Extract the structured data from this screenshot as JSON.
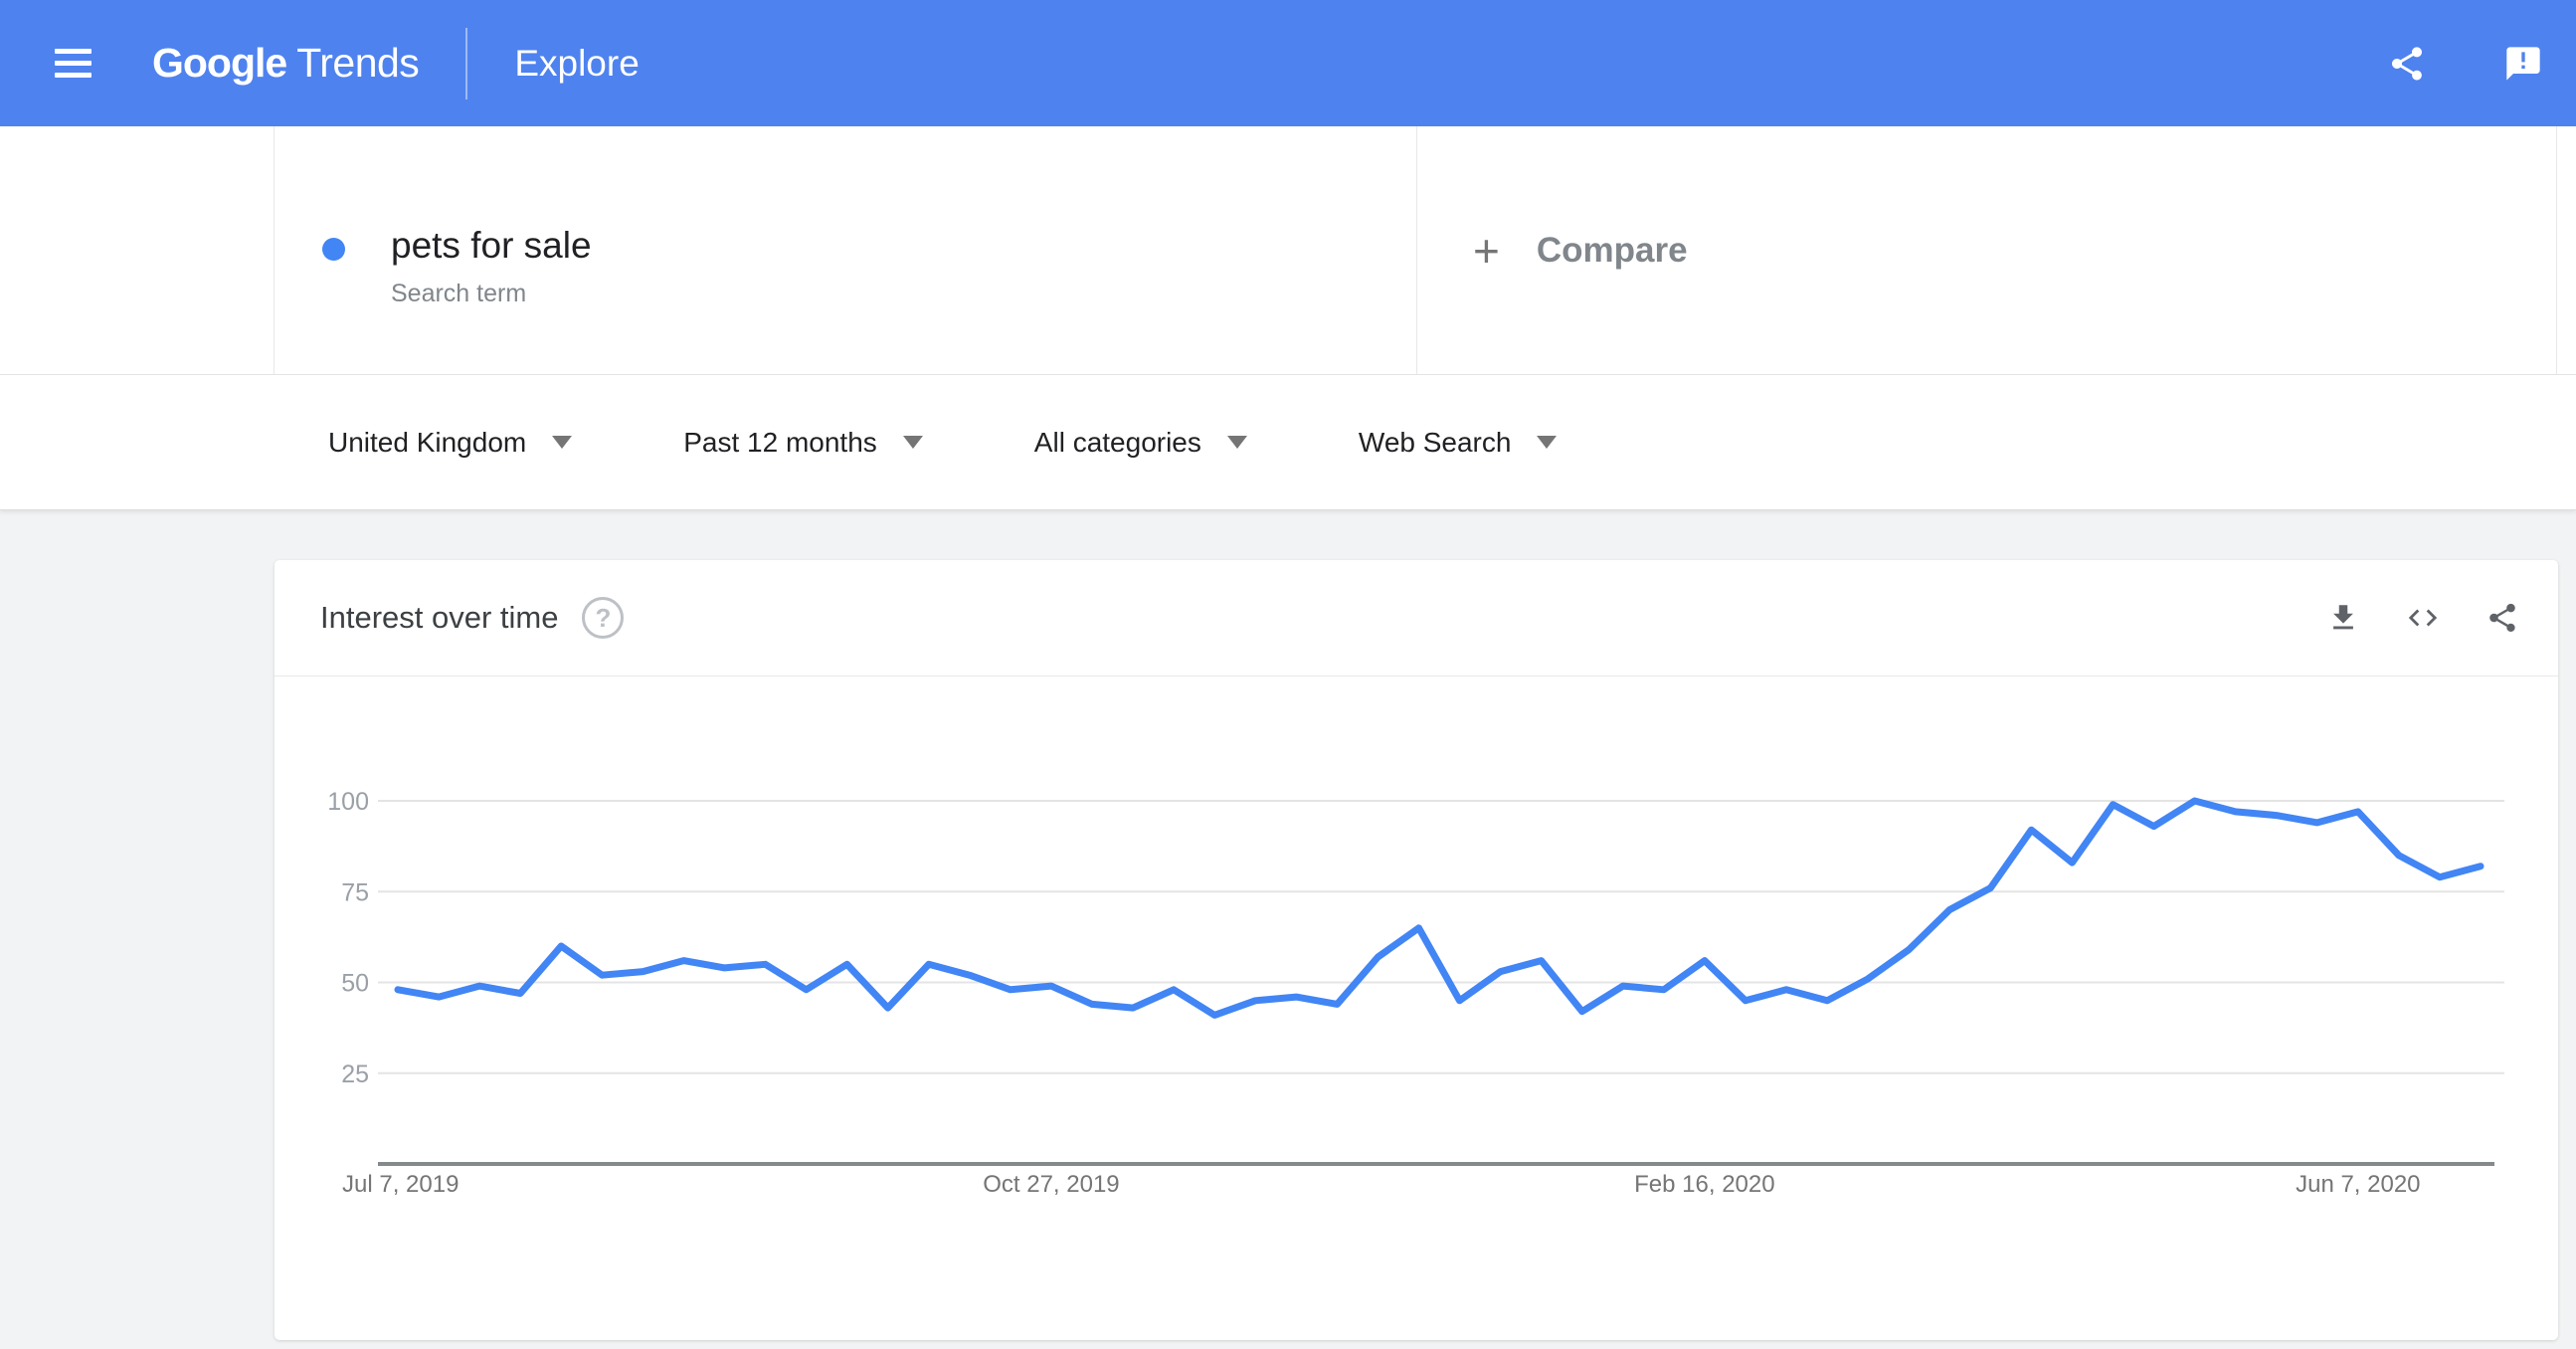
{
  "header": {
    "logo_google": "Google",
    "logo_trends": "Trends",
    "page_title": "Explore",
    "bg_color": "#4e82ef",
    "icons": [
      "menu-icon",
      "share-icon",
      "feedback-icon"
    ]
  },
  "term_section": {
    "term": "pets for sale",
    "type_label": "Search term",
    "dot_color": "#4285f4",
    "compare_plus": "+",
    "compare_label": "Compare"
  },
  "filters": {
    "geo": "United Kingdom",
    "time": "Past 12 months",
    "category": "All categories",
    "search_type": "Web Search"
  },
  "chart_card": {
    "title": "Interest over time",
    "help_glyph": "?",
    "icons": [
      "download-icon",
      "embed-code-icon",
      "share-icon"
    ]
  },
  "chart_data": {
    "type": "line",
    "title": "Interest over time",
    "legend": "none",
    "grid": "horizontal",
    "x_unit": "week",
    "num_points": 52,
    "x_range_start": "Jul 7, 2019",
    "x_range_end": "Jun 28, 2020",
    "series": [
      {
        "name": "pets for sale",
        "color": "#4285f4",
        "values": [
          48,
          46,
          49,
          47,
          60,
          52,
          53,
          56,
          54,
          55,
          48,
          55,
          43,
          55,
          52,
          48,
          49,
          44,
          43,
          48,
          41,
          45,
          46,
          44,
          57,
          65,
          45,
          53,
          56,
          42,
          49,
          48,
          56,
          45,
          48,
          45,
          51,
          59,
          70,
          76,
          92,
          83,
          99,
          93,
          100,
          97,
          96,
          94,
          97,
          85,
          79,
          82
        ]
      }
    ],
    "ylim": [
      0,
      100
    ],
    "y_ticks": [
      100,
      75,
      50,
      25
    ],
    "x_ticks": [
      {
        "index": 0,
        "label": "Jul 7, 2019",
        "align": "start"
      },
      {
        "index": 16,
        "label": "Oct 27, 2019",
        "align": "middle"
      },
      {
        "index": 32,
        "label": "Feb 16, 2020",
        "align": "middle"
      },
      {
        "index": 48,
        "label": "Jun 7, 2020",
        "align": "middle"
      }
    ],
    "colors": {
      "grid": "#e4e4e4",
      "axis": "#85898c",
      "y_tick_text": "#9aa0a6",
      "x_tick_text": "#757575"
    }
  }
}
